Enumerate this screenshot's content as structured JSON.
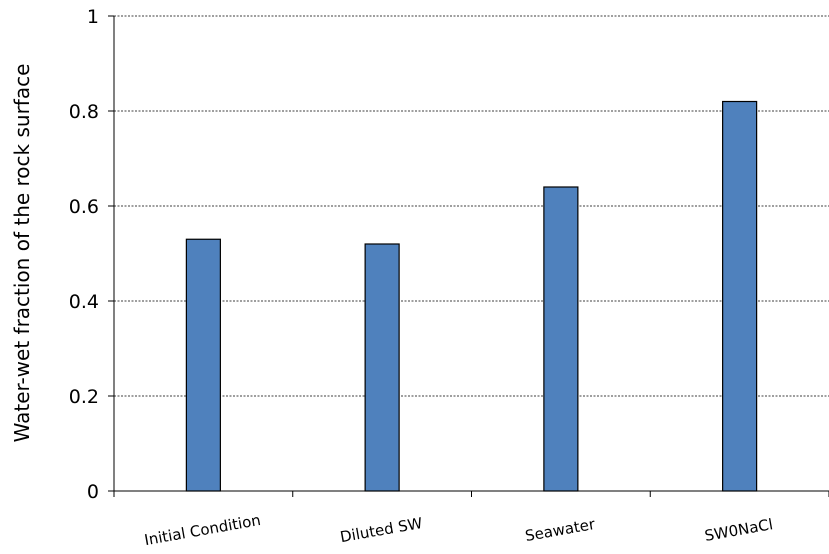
{
  "chart_data": {
    "type": "bar",
    "title": "",
    "xlabel": "",
    "ylabel": "Water-wet fraction of the rock surface",
    "categories": [
      "Initial Condition",
      "Diluted SW",
      "Seawater",
      "SW0NaCl"
    ],
    "values": [
      0.53,
      0.52,
      0.64,
      0.82
    ],
    "ylim": [
      0,
      1
    ],
    "yticks": [
      0,
      0.2,
      0.4,
      0.6,
      0.8,
      1
    ],
    "ytick_labels": [
      "0",
      "0.2",
      "0.4",
      "0.6",
      "0.8",
      "1"
    ],
    "grid": "horizontal dashed",
    "legend": "none",
    "bar_color": "#4f81bd",
    "bar_edge_color": "#000000"
  }
}
